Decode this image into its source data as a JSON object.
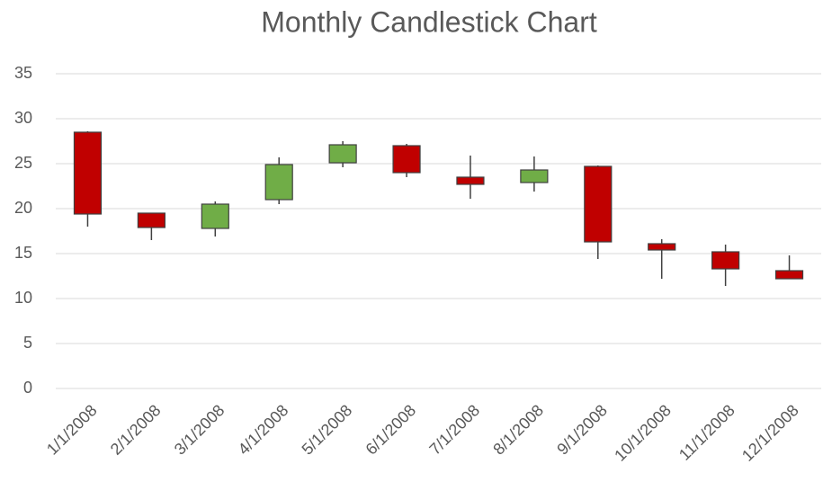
{
  "chart_data": {
    "type": "candlestick",
    "title": "Monthly Candlestick Chart",
    "categories": [
      "1/1/2008",
      "2/1/2008",
      "3/1/2008",
      "4/1/2008",
      "5/1/2008",
      "6/1/2008",
      "7/1/2008",
      "8/1/2008",
      "9/1/2008",
      "10/1/2008",
      "11/1/2008",
      "12/1/2008"
    ],
    "open": [
      28.5,
      19.5,
      17.8,
      21.0,
      25.1,
      27.0,
      23.5,
      22.9,
      24.7,
      16.1,
      15.2,
      13.1
    ],
    "high": [
      28.6,
      19.5,
      20.8,
      25.7,
      27.5,
      27.2,
      25.9,
      25.8,
      24.8,
      16.6,
      16.0,
      14.8
    ],
    "low": [
      18.0,
      16.5,
      16.9,
      20.5,
      24.6,
      23.5,
      21.1,
      21.9,
      14.4,
      12.2,
      11.4,
      12.2
    ],
    "close": [
      19.4,
      17.9,
      20.5,
      24.9,
      27.1,
      24.0,
      22.7,
      24.3,
      16.3,
      15.4,
      13.3,
      12.2
    ],
    "up_color": "#70ad47",
    "down_color": "#c00000",
    "ylim": [
      0,
      35
    ],
    "yticks": [
      0,
      5,
      10,
      15,
      20,
      25,
      30,
      35
    ],
    "grid": true
  }
}
